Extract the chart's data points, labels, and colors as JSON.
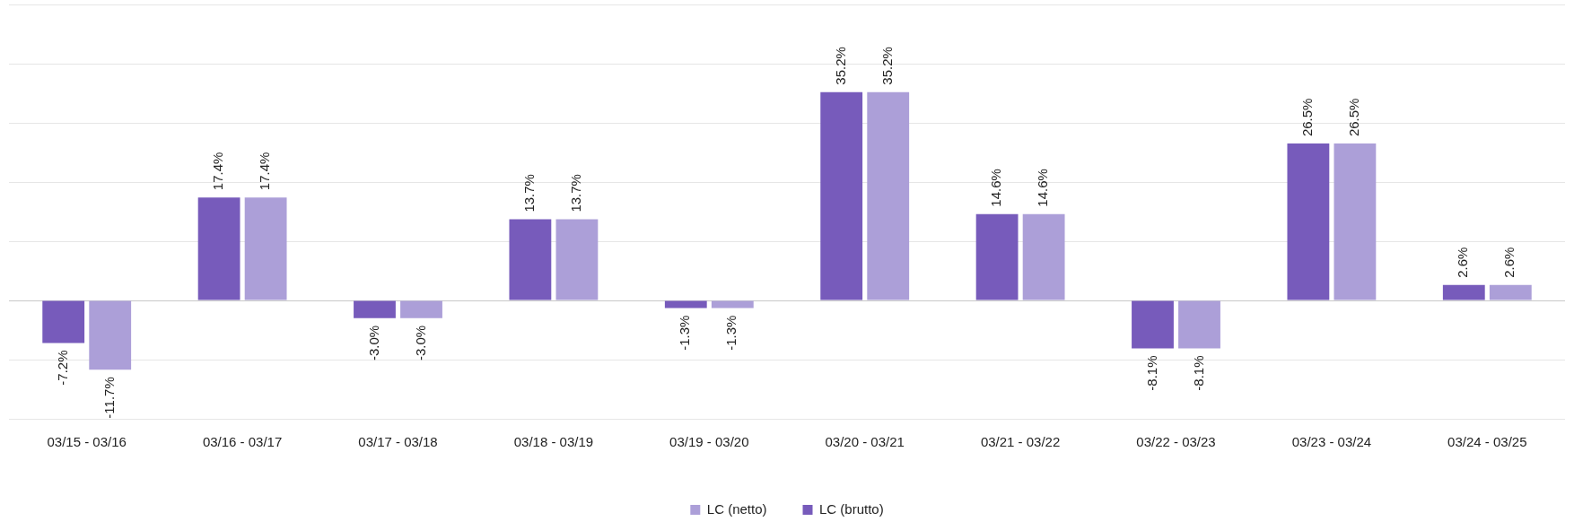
{
  "chart_data": {
    "type": "bar",
    "categories": [
      "03/15 - 03/16",
      "03/16 - 03/17",
      "03/17 - 03/18",
      "03/18 - 03/19",
      "03/19 - 03/20",
      "03/20 - 03/21",
      "03/21 - 03/22",
      "03/22 - 03/23",
      "03/23 - 03/24",
      "03/24 - 03/25"
    ],
    "series": [
      {
        "name": "LC (brutto)",
        "color": "#775bbb",
        "values": [
          -7.2,
          17.4,
          -3.0,
          13.7,
          -1.3,
          35.2,
          14.6,
          -8.1,
          26.5,
          2.6
        ],
        "value_labels": [
          "-7.2%",
          "17.4%",
          "-3.0%",
          "13.7%",
          "-1.3%",
          "35.2%",
          "14.6%",
          "-8.1%",
          "26.5%",
          "2.6%"
        ]
      },
      {
        "name": "LC (netto)",
        "color": "#ac9fd8",
        "values": [
          -11.7,
          17.4,
          -3.0,
          13.7,
          -1.3,
          35.2,
          14.6,
          -8.1,
          26.5,
          2.6
        ],
        "value_labels": [
          "-11.7%",
          "17.4%",
          "-3.0%",
          "13.7%",
          "-1.3%",
          "35.2%",
          "14.6%",
          "-8.1%",
          "26.5%",
          "2.6%"
        ]
      }
    ],
    "tick_labels": "x",
    "grid": "y",
    "legend": "bottom"
  }
}
